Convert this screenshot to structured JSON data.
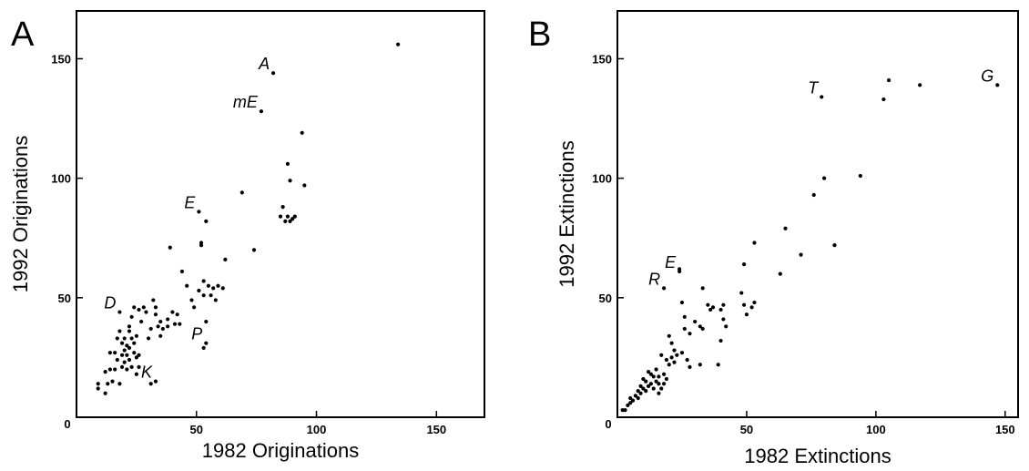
{
  "chart_data": [
    {
      "type": "scatter",
      "panel_label": "A",
      "xlabel": "1982 Originations",
      "ylabel": "1992 Originations",
      "xlim": [
        0,
        170
      ],
      "ylim": [
        0,
        170
      ],
      "xticks": [
        0,
        50,
        100,
        150
      ],
      "yticks": [
        50,
        100,
        150
      ],
      "origin_label": "0",
      "points": [
        [
          9,
          12
        ],
        [
          9,
          14
        ],
        [
          12,
          10
        ],
        [
          12,
          19
        ],
        [
          13,
          14
        ],
        [
          14,
          20
        ],
        [
          14,
          27
        ],
        [
          15,
          15
        ],
        [
          16,
          20
        ],
        [
          16,
          27
        ],
        [
          17,
          24
        ],
        [
          17,
          33
        ],
        [
          18,
          36
        ],
        [
          18,
          14
        ],
        [
          19,
          21
        ],
        [
          19,
          26
        ],
        [
          19,
          31
        ],
        [
          20,
          23
        ],
        [
          20,
          28
        ],
        [
          20,
          33
        ],
        [
          21,
          20
        ],
        [
          21,
          26
        ],
        [
          21,
          30
        ],
        [
          22,
          24
        ],
        [
          22,
          29
        ],
        [
          22,
          36
        ],
        [
          22,
          38
        ],
        [
          23,
          21
        ],
        [
          23,
          33
        ],
        [
          23,
          42
        ],
        [
          24,
          27
        ],
        [
          24,
          31
        ],
        [
          24,
          46
        ],
        [
          25,
          25
        ],
        [
          25,
          34
        ],
        [
          25,
          18
        ],
        [
          26,
          26
        ],
        [
          26,
          21
        ],
        [
          26,
          45
        ],
        [
          27,
          40
        ],
        [
          28,
          46
        ],
        [
          29,
          44
        ],
        [
          30,
          33
        ],
        [
          31,
          37
        ],
        [
          31,
          14
        ],
        [
          32,
          49
        ],
        [
          33,
          43
        ],
        [
          33,
          46
        ],
        [
          34,
          38
        ],
        [
          35,
          34
        ],
        [
          35,
          40
        ],
        [
          36,
          37
        ],
        [
          38,
          41
        ],
        [
          38,
          38
        ],
        [
          39,
          71
        ],
        [
          40,
          44
        ],
        [
          41,
          39
        ],
        [
          42,
          43
        ],
        [
          43,
          39
        ],
        [
          44,
          61
        ],
        [
          46,
          55
        ],
        [
          48,
          49
        ],
        [
          49,
          46
        ],
        [
          51,
          53
        ],
        [
          52,
          72
        ],
        [
          52,
          73
        ],
        [
          53,
          29
        ],
        [
          53,
          51
        ],
        [
          53,
          57
        ],
        [
          54,
          82
        ],
        [
          54,
          40
        ],
        [
          55,
          55
        ],
        [
          56,
          51
        ],
        [
          57,
          54
        ],
        [
          58,
          49
        ],
        [
          59,
          55
        ],
        [
          61,
          54
        ],
        [
          62,
          66
        ],
        [
          69,
          94
        ],
        [
          74,
          70
        ],
        [
          85,
          84
        ],
        [
          86,
          88
        ],
        [
          87,
          82
        ],
        [
          88,
          106
        ],
        [
          88,
          84
        ],
        [
          89,
          82
        ],
        [
          89,
          99
        ],
        [
          90,
          83
        ],
        [
          91,
          84
        ],
        [
          94,
          119
        ],
        [
          95,
          97
        ],
        [
          82,
          144
        ],
        [
          77,
          128
        ],
        [
          51,
          86
        ],
        [
          18,
          44
        ],
        [
          134,
          156
        ],
        [
          54,
          31
        ],
        [
          33,
          15
        ]
      ],
      "annotations": [
        {
          "label": "A",
          "x": 82,
          "y": 144
        },
        {
          "label": "mE",
          "x": 77,
          "y": 128
        },
        {
          "label": "E",
          "x": 51,
          "y": 86
        },
        {
          "label": "D",
          "x": 18,
          "y": 44
        },
        {
          "label": "P",
          "x": 54,
          "y": 31
        },
        {
          "label": "K",
          "x": 33,
          "y": 15
        }
      ]
    },
    {
      "type": "scatter",
      "panel_label": "B",
      "xlabel": "1982 Extinctions",
      "ylabel": "1992 Extinctions",
      "xlim": [
        0,
        155
      ],
      "ylim": [
        0,
        170
      ],
      "xticks": [
        0,
        50,
        100,
        150
      ],
      "yticks": [
        50,
        100,
        150
      ],
      "origin_label": "0",
      "points": [
        [
          2,
          3
        ],
        [
          3,
          3
        ],
        [
          4,
          5
        ],
        [
          5,
          6
        ],
        [
          5,
          8
        ],
        [
          6,
          7
        ],
        [
          7,
          9
        ],
        [
          8,
          8
        ],
        [
          8,
          11
        ],
        [
          9,
          10
        ],
        [
          9,
          13
        ],
        [
          10,
          12
        ],
        [
          10,
          16
        ],
        [
          11,
          11
        ],
        [
          11,
          15
        ],
        [
          12,
          13
        ],
        [
          12,
          19
        ],
        [
          13,
          14
        ],
        [
          13,
          18
        ],
        [
          14,
          12
        ],
        [
          14,
          17
        ],
        [
          15,
          15
        ],
        [
          15,
          20
        ],
        [
          16,
          14
        ],
        [
          16,
          17
        ],
        [
          16,
          10
        ],
        [
          17,
          12
        ],
        [
          17,
          26
        ],
        [
          18,
          14
        ],
        [
          18,
          18
        ],
        [
          19,
          16
        ],
        [
          19,
          24
        ],
        [
          20,
          22
        ],
        [
          20,
          34
        ],
        [
          21,
          25
        ],
        [
          21,
          31
        ],
        [
          22,
          23
        ],
        [
          22,
          28
        ],
        [
          23,
          26
        ],
        [
          24,
          62
        ],
        [
          25,
          27
        ],
        [
          25,
          48
        ],
        [
          26,
          37
        ],
        [
          26,
          42
        ],
        [
          27,
          24
        ],
        [
          28,
          21
        ],
        [
          28,
          35
        ],
        [
          30,
          40
        ],
        [
          32,
          22
        ],
        [
          32,
          38
        ],
        [
          33,
          54
        ],
        [
          33,
          37
        ],
        [
          35,
          47
        ],
        [
          36,
          45
        ],
        [
          37,
          46
        ],
        [
          39,
          22
        ],
        [
          40,
          32
        ],
        [
          40,
          45
        ],
        [
          41,
          47
        ],
        [
          41,
          41
        ],
        [
          42,
          38
        ],
        [
          48,
          52
        ],
        [
          49,
          64
        ],
        [
          49,
          47
        ],
        [
          50,
          43
        ],
        [
          52,
          46
        ],
        [
          53,
          48
        ],
        [
          53,
          73
        ],
        [
          63,
          60
        ],
        [
          65,
          79
        ],
        [
          71,
          68
        ],
        [
          76,
          93
        ],
        [
          80,
          100
        ],
        [
          84,
          72
        ],
        [
          94,
          101
        ],
        [
          103,
          133
        ],
        [
          105,
          141
        ],
        [
          117,
          139
        ],
        [
          147,
          139
        ],
        [
          79,
          134
        ],
        [
          18,
          54
        ],
        [
          24,
          61
        ]
      ],
      "annotations": [
        {
          "label": "T",
          "x": 79,
          "y": 134
        },
        {
          "label": "G",
          "x": 147,
          "y": 139
        },
        {
          "label": "R",
          "x": 18,
          "y": 54
        },
        {
          "label": "E",
          "x": 24,
          "y": 61
        }
      ]
    }
  ]
}
